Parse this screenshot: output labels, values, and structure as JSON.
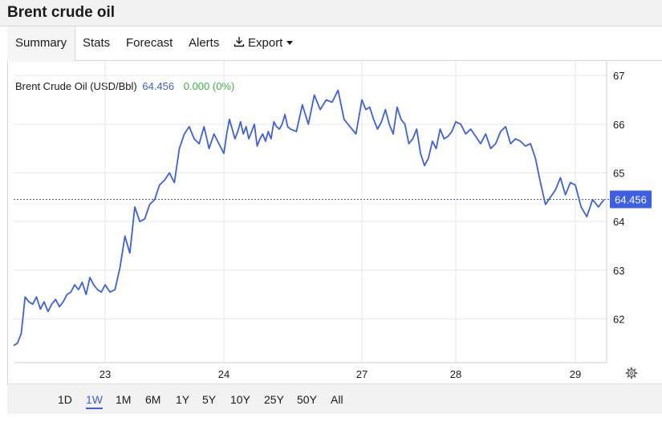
{
  "page": {
    "title": "Brent crude oil"
  },
  "tabs": [
    {
      "label": "Summary",
      "active": true
    },
    {
      "label": "Stats"
    },
    {
      "label": "Forecast"
    },
    {
      "label": "Alerts"
    },
    {
      "label": "Export",
      "icon": "download-icon",
      "dropdown": true
    }
  ],
  "legend": {
    "name": "Brent Crude Oil (USD/Bbl)",
    "value": "64.456",
    "change": "0.000 (0%)"
  },
  "colors": {
    "line": "#3c5fe6",
    "change": "#3cb043",
    "grid": "#e6e6e6"
  },
  "ranges": [
    "1D",
    "1W",
    "1M",
    "6M",
    "1Y",
    "5Y",
    "10Y",
    "25Y",
    "50Y",
    "All"
  ],
  "active_range": "1W",
  "settings_icon": "gear-icon",
  "chart_data": {
    "type": "line",
    "title": "",
    "xlabel": "",
    "ylabel": "",
    "x_ticks": [
      "23",
      "24",
      "27",
      "28",
      "29"
    ],
    "y_ticks": [
      62,
      63,
      64,
      65,
      66,
      67
    ],
    "ylim": [
      61.1,
      67.3
    ],
    "grid": true,
    "last_price_label": "64.456",
    "series": [
      {
        "name": "Brent Crude Oil (USD/Bbl)",
        "x": [
          "22 00:00",
          "22 01:00",
          "22 02:00",
          "22 03:00",
          "22 04:00",
          "22 05:00",
          "22 06:00",
          "22 07:00",
          "22 08:00",
          "22 09:00",
          "22 10:00",
          "22 11:00",
          "22 12:00",
          "22 13:00",
          "22 14:00",
          "22 15:00",
          "22 16:00",
          "22 17:00",
          "22 18:00",
          "22 19:00",
          "22 20:00",
          "22 21:00",
          "22 22:00",
          "22 23:00",
          "23 00:00",
          "23 01:00",
          "23 02:00",
          "23 03:00",
          "23 04:00",
          "23 05:00",
          "23 06:00",
          "23 07:00",
          "23 08:00",
          "23 09:00",
          "23 10:00",
          "23 11:00",
          "23 12:00",
          "23 13:00",
          "23 14:00",
          "23 15:00",
          "23 16:00",
          "23 17:00",
          "23 18:00",
          "23 19:00",
          "23 20:00",
          "23 21:00",
          "23 22:00",
          "23 23:00",
          "24 00:00",
          "24 01:00",
          "24 02:00",
          "24 03:00",
          "24 04:00",
          "24 05:00",
          "24 06:00",
          "24 07:00",
          "24 08:00",
          "24 09:00",
          "24 10:00",
          "24 11:00",
          "24 12:00",
          "24 13:00",
          "24 14:00",
          "24 15:00",
          "24 16:00",
          "24 17:00",
          "24 18:00",
          "24 19:00",
          "24 20:00",
          "24 21:00",
          "24 22:00",
          "24 23:00",
          "25 00:00",
          "25 02:00",
          "25 04:00",
          "25 06:00",
          "25 08:00",
          "25 10:00",
          "25 12:00",
          "25 14:00",
          "25 16:00",
          "25 18:00",
          "25 20:00",
          "25 22:00",
          "27 00:00",
          "27 01:00",
          "27 02:00",
          "27 03:00",
          "27 04:00",
          "27 05:00",
          "27 06:00",
          "27 07:00",
          "27 08:00",
          "27 09:00",
          "27 10:00",
          "27 11:00",
          "27 12:00",
          "27 13:00",
          "27 14:00",
          "27 15:00",
          "27 16:00",
          "27 17:00",
          "27 18:00",
          "27 19:00",
          "27 20:00",
          "27 21:00",
          "27 22:00",
          "27 23:00",
          "28 00:00",
          "28 01:00",
          "28 02:00",
          "28 03:00",
          "28 04:00",
          "28 05:00",
          "28 06:00",
          "28 07:00",
          "28 08:00",
          "28 09:00",
          "28 10:00",
          "28 11:00",
          "28 12:00",
          "28 13:00",
          "28 14:00",
          "28 15:00",
          "28 16:00",
          "28 17:00",
          "28 18:00",
          "28 19:00",
          "28 20:00",
          "28 21:00",
          "28 22:00",
          "28 23:00",
          "29 00:00",
          "29 01:00",
          "29 02:00",
          "29 03:00",
          "29 04:00",
          "29 05:00"
        ],
        "values": [
          61.45,
          61.5,
          61.7,
          62.45,
          62.35,
          62.3,
          62.45,
          62.2,
          62.35,
          62.15,
          62.3,
          62.4,
          62.25,
          62.35,
          62.5,
          62.55,
          62.7,
          62.6,
          62.75,
          62.5,
          62.85,
          62.7,
          62.6,
          62.55,
          62.7,
          62.55,
          62.6,
          63.05,
          63.7,
          63.35,
          64.3,
          64.0,
          64.05,
          64.35,
          64.45,
          64.75,
          64.85,
          65.0,
          64.8,
          65.5,
          65.8,
          65.95,
          65.7,
          65.6,
          65.95,
          65.5,
          65.8,
          65.6,
          65.4,
          65.8,
          66.1,
          65.9,
          65.7,
          65.85,
          66.05,
          65.8,
          65.95,
          65.7,
          65.85,
          66.0,
          65.55,
          65.7,
          65.8,
          65.65,
          65.85,
          65.7,
          66.05,
          65.95,
          65.9,
          66.0,
          66.2,
          65.95,
          65.9,
          65.85,
          66.4,
          66.0,
          66.6,
          66.3,
          66.5,
          66.45,
          66.7,
          66.1,
          65.95,
          65.8,
          66.5,
          66.3,
          66.35,
          66.1,
          65.9,
          66.05,
          66.3,
          66.0,
          65.8,
          66.35,
          66.1,
          66.0,
          65.6,
          65.7,
          65.9,
          65.4,
          65.15,
          65.3,
          65.65,
          65.5,
          65.9,
          65.7,
          65.75,
          65.85,
          66.05,
          66.0,
          65.8,
          65.9,
          65.75,
          65.6,
          65.8,
          65.5,
          65.6,
          65.85,
          65.95,
          65.6,
          65.7,
          65.65,
          65.55,
          65.6,
          65.3,
          64.8,
          64.35,
          64.5,
          64.65,
          64.9,
          64.55,
          64.8,
          64.75,
          64.3,
          64.1,
          64.45,
          64.3,
          64.45
        ]
      }
    ]
  }
}
